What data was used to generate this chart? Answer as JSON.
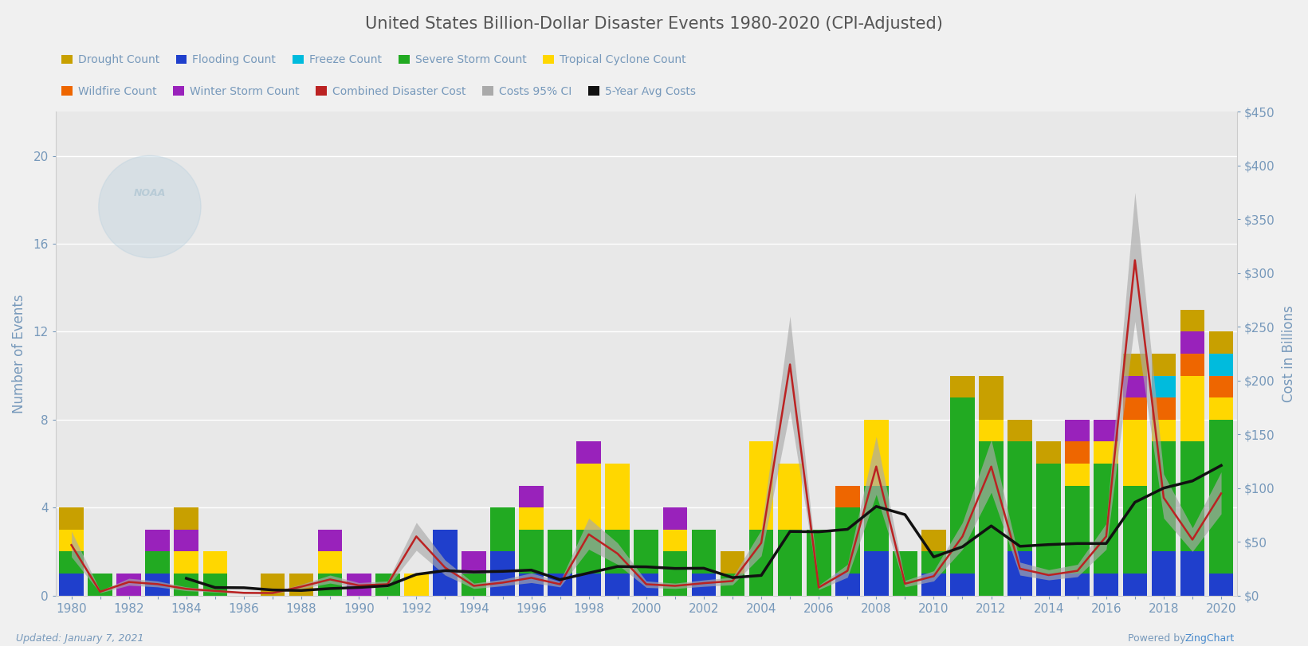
{
  "years": [
    1980,
    1981,
    1982,
    1983,
    1984,
    1985,
    1986,
    1987,
    1988,
    1989,
    1990,
    1991,
    1992,
    1993,
    1994,
    1995,
    1996,
    1997,
    1998,
    1999,
    2000,
    2001,
    2002,
    2003,
    2004,
    2005,
    2006,
    2007,
    2008,
    2009,
    2010,
    2011,
    2012,
    2013,
    2014,
    2015,
    2016,
    2017,
    2018,
    2019,
    2020
  ],
  "drought": [
    1,
    0,
    0,
    0,
    1,
    0,
    0,
    1,
    1,
    0,
    0,
    0,
    0,
    0,
    0,
    0,
    0,
    0,
    0,
    0,
    0,
    0,
    0,
    1,
    0,
    0,
    0,
    0,
    0,
    0,
    1,
    1,
    2,
    1,
    1,
    0,
    0,
    1,
    1,
    1,
    1
  ],
  "flooding": [
    1,
    0,
    0,
    1,
    0,
    0,
    0,
    0,
    0,
    0,
    0,
    0,
    0,
    3,
    0,
    2,
    1,
    1,
    1,
    1,
    1,
    0,
    1,
    0,
    0,
    0,
    0,
    1,
    2,
    0,
    1,
    1,
    0,
    2,
    1,
    1,
    1,
    1,
    2,
    2,
    1
  ],
  "freeze": [
    0,
    0,
    0,
    0,
    0,
    0,
    0,
    0,
    0,
    0,
    0,
    0,
    0,
    0,
    0,
    0,
    0,
    0,
    0,
    0,
    0,
    0,
    0,
    0,
    0,
    0,
    0,
    0,
    0,
    0,
    0,
    0,
    0,
    0,
    0,
    0,
    0,
    0,
    1,
    0,
    1
  ],
  "severe_storm": [
    1,
    1,
    0,
    1,
    1,
    1,
    0,
    0,
    0,
    1,
    0,
    1,
    0,
    0,
    1,
    2,
    2,
    2,
    2,
    2,
    2,
    2,
    2,
    1,
    3,
    3,
    3,
    3,
    3,
    2,
    1,
    8,
    7,
    5,
    5,
    4,
    5,
    4,
    5,
    5,
    7
  ],
  "tropical_cyclone": [
    1,
    0,
    0,
    0,
    1,
    1,
    0,
    0,
    0,
    1,
    0,
    0,
    1,
    0,
    0,
    0,
    1,
    0,
    3,
    3,
    0,
    1,
    0,
    0,
    4,
    3,
    0,
    0,
    3,
    0,
    0,
    0,
    1,
    0,
    0,
    1,
    1,
    3,
    1,
    3,
    1
  ],
  "wildfire": [
    0,
    0,
    0,
    0,
    0,
    0,
    0,
    0,
    0,
    0,
    0,
    0,
    0,
    0,
    0,
    0,
    0,
    0,
    0,
    0,
    0,
    0,
    0,
    0,
    0,
    0,
    0,
    1,
    0,
    0,
    0,
    0,
    0,
    0,
    0,
    1,
    0,
    1,
    1,
    1,
    1
  ],
  "winter_storm": [
    0,
    0,
    1,
    1,
    1,
    0,
    0,
    0,
    0,
    1,
    1,
    0,
    0,
    0,
    1,
    0,
    1,
    0,
    1,
    0,
    0,
    1,
    0,
    0,
    0,
    0,
    0,
    0,
    0,
    0,
    0,
    0,
    0,
    0,
    0,
    1,
    1,
    1,
    0,
    1,
    0
  ],
  "cost": [
    47.0,
    3.5,
    12.6,
    10.6,
    6.2,
    4.3,
    2.5,
    2.3,
    8.3,
    15.0,
    9.4,
    10.5,
    55.0,
    26.0,
    9.0,
    12.0,
    16.5,
    10.5,
    57.0,
    39.0,
    10.5,
    9.0,
    11.5,
    13.5,
    49.0,
    215.0,
    7.5,
    23.0,
    120.0,
    11.0,
    18.0,
    55.0,
    120.0,
    25.0,
    19.0,
    23.0,
    55.0,
    312.0,
    91.0,
    52.0,
    95.0
  ],
  "cost_ci_low": [
    36.0,
    2.5,
    9.5,
    8.0,
    4.5,
    3.2,
    1.8,
    1.7,
    6.5,
    11.5,
    7.0,
    8.0,
    42.0,
    19.0,
    6.5,
    9.0,
    12.0,
    8.0,
    43.0,
    29.0,
    7.5,
    6.5,
    8.5,
    10.0,
    37.0,
    172.0,
    5.5,
    17.0,
    94.0,
    8.0,
    13.5,
    43.0,
    96.0,
    19.0,
    14.5,
    17.5,
    43.0,
    255.0,
    72.0,
    41.0,
    76.0
  ],
  "cost_ci_high": [
    60.0,
    4.5,
    16.0,
    13.5,
    8.0,
    5.5,
    3.2,
    3.0,
    10.5,
    19.0,
    12.0,
    13.5,
    68.0,
    33.0,
    11.5,
    15.0,
    21.0,
    13.0,
    72.0,
    49.0,
    13.5,
    11.5,
    14.5,
    17.0,
    61.0,
    260.0,
    9.5,
    29.0,
    148.0,
    14.0,
    23.0,
    68.0,
    145.0,
    31.0,
    24.0,
    29.0,
    67.0,
    375.0,
    113.0,
    63.0,
    115.0
  ],
  "title": "United States Billion-Dollar Disaster Events 1980-2020 (CPI-Adjusted)",
  "ylabel_left": "Number of Events",
  "ylabel_right": "Cost in Billions",
  "colors": {
    "drought": "#C8A000",
    "flooding": "#1F3FCC",
    "freeze": "#00BBDD",
    "severe_storm": "#22AA22",
    "tropical_cyclone": "#FFD700",
    "wildfire": "#EE6600",
    "winter_storm": "#9922BB",
    "cost_line": "#BB2222",
    "cost_ci": "#AAAAAA",
    "avg_cost": "#111111"
  },
  "ylim_left": [
    0,
    22
  ],
  "ylim_right": [
    0,
    450
  ],
  "yticks_left": [
    0,
    4,
    8,
    12,
    16,
    20
  ],
  "yticks_right": [
    0,
    50,
    100,
    150,
    200,
    250,
    300,
    350,
    400,
    450
  ],
  "ytick_labels_right": [
    "$0",
    "$50",
    "$100",
    "$150",
    "$200",
    "$250",
    "$300",
    "$350",
    "$400",
    "$450"
  ],
  "background_color": "#e8e8e8",
  "fig_color": "#f0f0f0",
  "grid_color": "#ffffff",
  "tick_color": "#7799bb",
  "label_color": "#7799bb",
  "title_color": "#555555",
  "updated_text": "Updated: January 7, 2021",
  "powered_by": "Powered by ",
  "zing_text": "ZingChart",
  "zing_color": "#4488cc"
}
